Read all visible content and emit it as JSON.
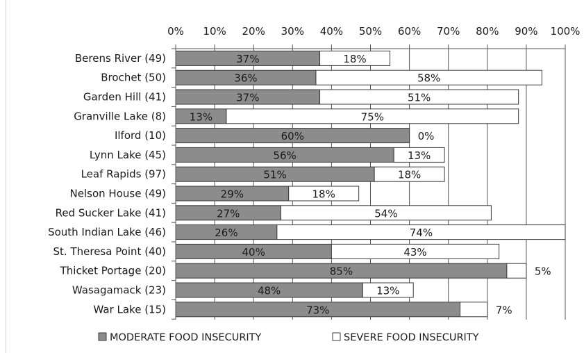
{
  "chart_data": {
    "type": "bar",
    "orientation": "horizontal",
    "stacked": true,
    "title": "",
    "xlabel": "",
    "ylabel": "",
    "xlim": [
      0,
      100
    ],
    "x_ticks": [
      "0%",
      "10%",
      "20%",
      "30%",
      "40%",
      "50%",
      "60%",
      "70%",
      "80%",
      "90%",
      "100%"
    ],
    "grid": true,
    "legend_position": "bottom",
    "categories": [
      "Berens River (49)",
      "Brochet (50)",
      "Garden Hill (41)",
      "Granville Lake (8)",
      "Ilford (10)",
      "Lynn Lake (45)",
      "Leaf Rapids (97)",
      "Nelson House (49)",
      "Red Sucker Lake (41)",
      "South Indian Lake (46)",
      "St. Theresa Point (40)",
      "Thicket Portage (20)",
      "Wasagamack (23)",
      "War Lake (15)"
    ],
    "series": [
      {
        "name": "MODERATE FOOD INSECURITY",
        "color": "#8c8c8c",
        "values": [
          37,
          36,
          37,
          13,
          60,
          56,
          51,
          29,
          27,
          26,
          40,
          85,
          48,
          73
        ],
        "labels": [
          "37%",
          "36%",
          "37%",
          "13%",
          "60%",
          "56%",
          "51%",
          "29%",
          "27%",
          "26%",
          "40%",
          "85%",
          "48%",
          "73%"
        ]
      },
      {
        "name": "SEVERE FOOD INSECURITY",
        "color": "#ffffff",
        "values": [
          18,
          58,
          51,
          75,
          0,
          13,
          18,
          18,
          54,
          74,
          43,
          5,
          13,
          7
        ],
        "labels": [
          "18%",
          "58%",
          "51%",
          "75%",
          "0%",
          "13%",
          "18%",
          "18%",
          "54%",
          "74%",
          "43%",
          "5%",
          "13%",
          "7%"
        ]
      }
    ]
  }
}
